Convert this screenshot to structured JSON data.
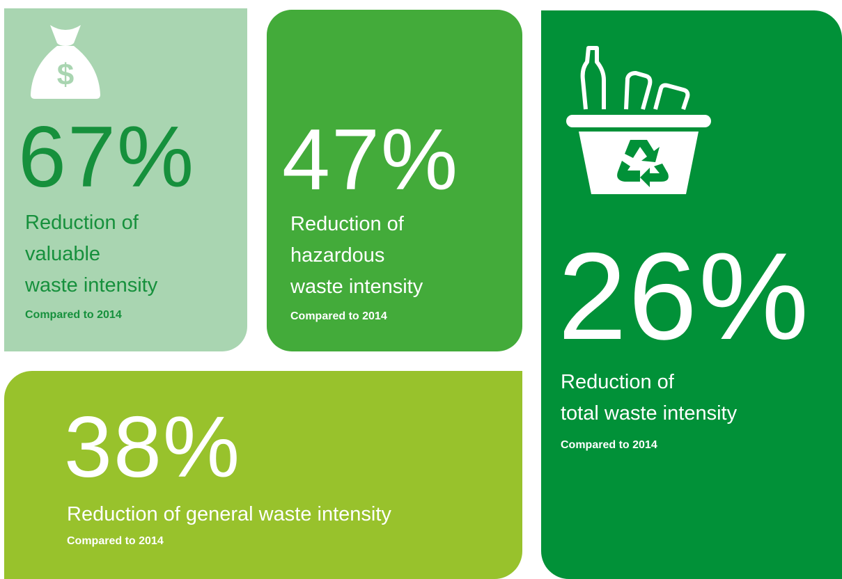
{
  "tiles": [
    {
      "value": "67%",
      "description": [
        "Reduction of",
        "valuable",
        "waste intensity"
      ],
      "note": "Compared to 2014"
    },
    {
      "value": "47%",
      "description": [
        "Reduction of",
        "hazardous",
        "waste intensity"
      ],
      "note": "Compared to 2014"
    },
    {
      "value": "26%",
      "description": [
        "Reduction of",
        "total waste intensity"
      ],
      "note": "Compared to 2014"
    },
    {
      "value": "38%",
      "description": [
        "Reduction of general waste intensity"
      ],
      "note": "Compared to 2014"
    }
  ]
}
